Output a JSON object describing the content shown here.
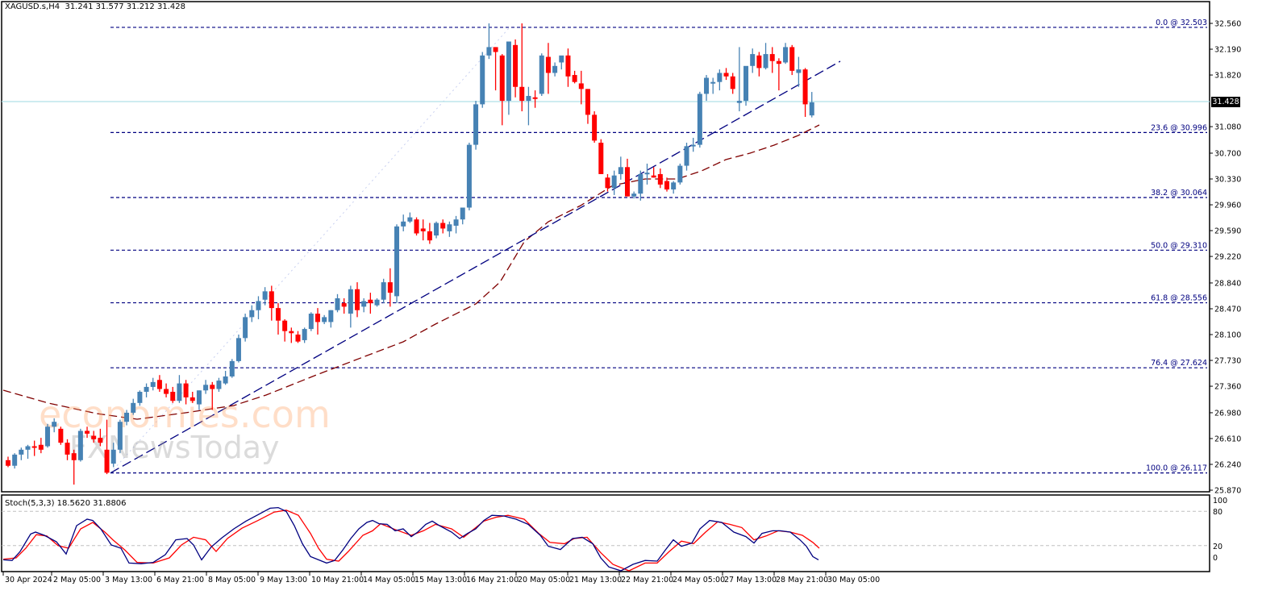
{
  "header": {
    "symbol": "XAGUSD.s,H4",
    "ohlc": "31.241 31.577 31.212 31.428"
  },
  "current_price": "31.428",
  "stoch_panel": {
    "title": "Stoch(5,3,3) 18.5620 31.8806",
    "levels": [
      "100",
      "80",
      "20",
      "0"
    ]
  },
  "watermark": {
    "line1": "economies.com",
    "line2": "FXNewsToday"
  },
  "colors": {
    "bull": "#4682B4",
    "bear": "#FF0000",
    "fib": "#000080",
    "ma": "#800000",
    "trend": "#000080",
    "bid_line": "#B0E0E6",
    "stoch_main": "#000080",
    "stoch_signal": "#FF0000"
  },
  "chart_data": {
    "type": "candlestick",
    "title": "XAGUSD.s,H4",
    "xlabel": "",
    "ylabel": "",
    "ylim": [
      25.87,
      32.56
    ],
    "y_ticks": [
      "32.560",
      "32.190",
      "31.820",
      "31.428",
      "31.080",
      "30.700",
      "30.330",
      "29.960",
      "29.590",
      "29.220",
      "28.840",
      "28.470",
      "28.100",
      "27.730",
      "27.360",
      "26.980",
      "26.610",
      "26.240",
      "25.870"
    ],
    "x_ticks": [
      "30 Apr 2024",
      "2 May 05:00",
      "3 May 13:00",
      "6 May 21:00",
      "8 May 05:00",
      "9 May 13:00",
      "10 May 21:00",
      "14 May 05:00",
      "15 May 13:00",
      "16 May 21:00",
      "20 May 05:00",
      "21 May 13:00",
      "22 May 21:00",
      "24 May 05:00",
      "27 May 13:00",
      "28 May 21:00",
      "30 May 05:00"
    ],
    "fibonacci": [
      {
        "label": "0.0 @ 32.503",
        "level": 0.0,
        "price": 32.503
      },
      {
        "label": "23.6 @ 30.996",
        "level": 23.6,
        "price": 30.996
      },
      {
        "label": "38.2 @ 30.064",
        "level": 38.2,
        "price": 30.064
      },
      {
        "label": "50.0 @ 29.310",
        "level": 50.0,
        "price": 29.31
      },
      {
        "label": "61.8 @ 28.556",
        "level": 61.8,
        "price": 28.556
      },
      {
        "label": "76.4 @ 27.624",
        "level": 76.4,
        "price": 27.624
      },
      {
        "label": "100.0 @ 26.117",
        "level": 100.0,
        "price": 26.117
      }
    ],
    "last_candle": {
      "open": 31.241,
      "high": 31.577,
      "low": 31.212,
      "close": 31.428
    },
    "candles": [
      [
        26.3,
        26.35,
        26.2,
        26.22
      ],
      [
        26.22,
        26.4,
        26.18,
        26.38
      ],
      [
        26.38,
        26.48,
        26.3,
        26.45
      ],
      [
        26.45,
        26.52,
        26.32,
        26.5
      ],
      [
        26.5,
        26.58,
        26.36,
        26.48
      ],
      [
        26.52,
        26.62,
        26.4,
        26.45
      ],
      [
        26.5,
        26.82,
        26.48,
        26.78
      ],
      [
        26.78,
        26.9,
        26.7,
        26.85
      ],
      [
        26.75,
        26.78,
        26.52,
        26.55
      ],
      [
        26.55,
        26.6,
        26.3,
        26.38
      ],
      [
        26.4,
        26.45,
        25.95,
        26.3
      ],
      [
        26.3,
        26.75,
        26.28,
        26.72
      ],
      [
        26.72,
        26.78,
        26.62,
        26.68
      ],
      [
        26.65,
        26.72,
        26.55,
        26.6
      ],
      [
        26.62,
        26.75,
        26.5,
        26.55
      ],
      [
        26.45,
        26.88,
        26.1,
        26.12
      ],
      [
        26.25,
        26.55,
        26.2,
        26.45
      ],
      [
        26.45,
        26.88,
        26.4,
        26.85
      ],
      [
        26.85,
        27.02,
        26.8,
        26.98
      ],
      [
        26.98,
        27.18,
        26.95,
        27.12
      ],
      [
        27.12,
        27.3,
        27.08,
        27.28
      ],
      [
        27.28,
        27.4,
        27.2,
        27.35
      ],
      [
        27.35,
        27.48,
        27.3,
        27.42
      ],
      [
        27.45,
        27.52,
        27.28,
        27.32
      ],
      [
        27.32,
        27.4,
        27.2,
        27.25
      ],
      [
        27.28,
        27.35,
        27.12,
        27.15
      ],
      [
        27.15,
        27.52,
        27.12,
        27.4
      ],
      [
        27.4,
        27.45,
        27.1,
        27.2
      ],
      [
        27.2,
        27.28,
        27.12,
        27.15
      ],
      [
        27.1,
        27.3,
        27.02,
        27.3
      ],
      [
        27.3,
        27.45,
        27.25,
        27.38
      ],
      [
        27.38,
        27.42,
        27.02,
        27.32
      ],
      [
        27.32,
        27.48,
        27.28,
        27.44
      ],
      [
        27.4,
        27.58,
        27.38,
        27.5
      ],
      [
        27.5,
        27.75,
        27.48,
        27.72
      ],
      [
        27.72,
        28.1,
        27.7,
        28.05
      ],
      [
        28.05,
        28.4,
        28.0,
        28.35
      ],
      [
        28.35,
        28.52,
        28.28,
        28.45
      ],
      [
        28.45,
        28.65,
        28.32,
        28.58
      ],
      [
        28.6,
        28.78,
        28.52,
        28.72
      ],
      [
        28.72,
        28.8,
        28.3,
        28.48
      ],
      [
        28.48,
        28.55,
        28.1,
        28.3
      ],
      [
        28.3,
        28.32,
        28.0,
        28.15
      ],
      [
        28.15,
        28.2,
        27.98,
        28.12
      ],
      [
        28.1,
        28.15,
        27.98,
        28.0
      ],
      [
        28.02,
        28.2,
        27.98,
        28.18
      ],
      [
        28.18,
        28.42,
        28.15,
        28.4
      ],
      [
        28.4,
        28.48,
        28.1,
        28.28
      ],
      [
        28.28,
        28.38,
        28.25,
        28.35
      ],
      [
        28.28,
        28.45,
        28.2,
        28.45
      ],
      [
        28.45,
        28.68,
        28.42,
        28.62
      ],
      [
        28.55,
        28.62,
        28.4,
        28.5
      ],
      [
        28.4,
        28.8,
        28.2,
        28.75
      ],
      [
        28.75,
        28.85,
        28.35,
        28.45
      ],
      [
        28.5,
        28.62,
        28.42,
        28.58
      ],
      [
        28.6,
        28.7,
        28.4,
        28.55
      ],
      [
        28.52,
        28.62,
        28.5,
        28.6
      ],
      [
        28.6,
        28.9,
        28.55,
        28.85
      ],
      [
        28.85,
        29.05,
        28.5,
        28.7
      ],
      [
        28.65,
        29.68,
        28.55,
        29.65
      ],
      [
        29.65,
        29.82,
        29.58,
        29.72
      ],
      [
        29.72,
        29.85,
        29.7,
        29.78
      ],
      [
        29.75,
        29.78,
        29.52,
        29.55
      ],
      [
        29.62,
        29.75,
        29.45,
        29.58
      ],
      [
        29.58,
        29.7,
        29.4,
        29.45
      ],
      [
        29.52,
        29.72,
        29.48,
        29.7
      ],
      [
        29.7,
        29.75,
        29.55,
        29.62
      ],
      [
        29.58,
        29.72,
        29.5,
        29.68
      ],
      [
        29.66,
        29.8,
        29.55,
        29.75
      ],
      [
        29.75,
        29.92,
        29.68,
        29.92
      ],
      [
        29.92,
        30.85,
        29.88,
        30.82
      ],
      [
        30.82,
        31.45,
        30.75,
        31.4
      ],
      [
        31.4,
        32.15,
        31.35,
        32.1
      ],
      [
        32.1,
        32.56,
        32.05,
        32.22
      ],
      [
        32.22,
        32.22,
        31.6,
        32.15
      ],
      [
        32.1,
        32.12,
        31.1,
        31.45
      ],
      [
        31.45,
        32.3,
        31.25,
        32.3
      ],
      [
        32.25,
        32.33,
        31.5,
        31.65
      ],
      [
        31.65,
        32.56,
        31.3,
        31.45
      ],
      [
        31.45,
        31.65,
        31.1,
        31.52
      ],
      [
        31.5,
        31.6,
        31.35,
        31.48
      ],
      [
        31.55,
        32.13,
        31.52,
        32.1
      ],
      [
        32.08,
        32.28,
        31.55,
        31.85
      ],
      [
        31.85,
        32.0,
        31.8,
        31.95
      ],
      [
        32.0,
        32.08,
        31.9,
        32.1
      ],
      [
        32.1,
        32.2,
        31.65,
        31.8
      ],
      [
        31.82,
        31.88,
        31.7,
        31.72
      ],
      [
        31.7,
        31.88,
        31.4,
        31.62
      ],
      [
        31.62,
        31.62,
        31.12,
        31.25
      ],
      [
        31.25,
        31.3,
        30.85,
        30.88
      ],
      [
        30.85,
        30.9,
        30.4,
        30.4
      ],
      [
        30.35,
        30.4,
        30.15,
        30.2
      ],
      [
        30.2,
        30.45,
        30.1,
        30.38
      ],
      [
        30.4,
        30.65,
        30.32,
        30.5
      ],
      [
        30.5,
        30.62,
        30.08,
        30.08
      ],
      [
        30.08,
        30.15,
        30.05,
        30.12
      ],
      [
        30.12,
        30.45,
        30.02,
        30.4
      ],
      [
        30.4,
        30.55,
        30.25,
        30.42
      ],
      [
        30.38,
        30.5,
        30.35,
        30.35
      ],
      [
        30.4,
        30.48,
        30.2,
        30.25
      ],
      [
        30.3,
        30.35,
        30.15,
        30.18
      ],
      [
        30.18,
        30.3,
        30.12,
        30.28
      ],
      [
        30.28,
        30.55,
        30.25,
        30.52
      ],
      [
        30.52,
        30.85,
        30.45,
        30.8
      ],
      [
        30.8,
        30.92,
        30.72,
        30.82
      ],
      [
        30.82,
        31.58,
        30.78,
        31.55
      ],
      [
        31.55,
        31.82,
        31.45,
        31.78
      ],
      [
        31.7,
        31.78,
        31.55,
        31.72
      ],
      [
        31.72,
        31.9,
        31.6,
        31.85
      ],
      [
        31.85,
        31.92,
        31.75,
        31.8
      ],
      [
        31.8,
        31.85,
        31.55,
        31.62
      ],
      [
        31.42,
        32.22,
        31.3,
        31.45
      ],
      [
        31.45,
        31.9,
        31.38,
        31.95
      ],
      [
        31.95,
        32.2,
        31.85,
        32.12
      ],
      [
        32.1,
        32.15,
        31.8,
        31.92
      ],
      [
        31.92,
        32.28,
        31.9,
        32.12
      ],
      [
        32.12,
        32.22,
        31.85,
        32.02
      ],
      [
        32.02,
        32.06,
        31.6,
        31.98
      ],
      [
        32.0,
        32.28,
        31.98,
        32.22
      ],
      [
        32.22,
        32.25,
        31.82,
        31.88
      ],
      [
        31.85,
        32.08,
        31.65,
        31.9
      ],
      [
        31.9,
        31.92,
        31.22,
        31.4
      ],
      [
        31.241,
        31.577,
        31.212,
        31.428
      ]
    ],
    "moving_average": {
      "color": "#800000",
      "style": "dashed"
    },
    "stochastic": {
      "k_period": 5,
      "d_period": 3,
      "slowing": 3,
      "main": 18.562,
      "signal": 31.8806,
      "levels": [
        20,
        80
      ]
    }
  }
}
